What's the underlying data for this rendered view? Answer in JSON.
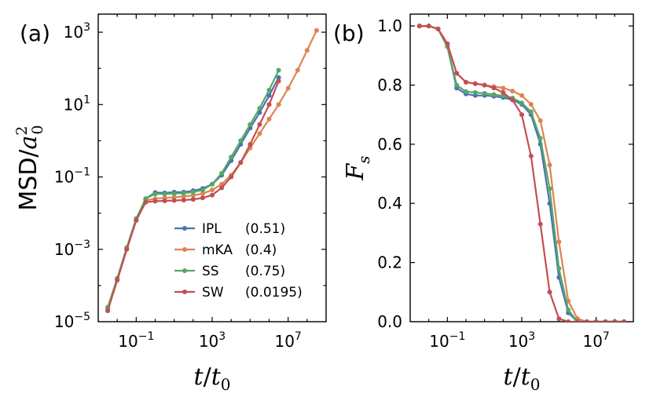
{
  "chart_data": [
    {
      "type": "line",
      "panel_label": "(a)",
      "title": "",
      "xlabel": "t/t0",
      "xlabel_parts": {
        "var": "t",
        "sep": "/",
        "base": "t",
        "sub": "0"
      },
      "ylabel": "MSD/a0^2",
      "ylabel_parts": {
        "main": "MSD/",
        "var": "a",
        "sub": "0",
        "sup": "2"
      },
      "xscale": "log",
      "yscale": "log",
      "xlim_log10": [
        -3,
        9
      ],
      "ylim_log10": [
        -5,
        3.5
      ],
      "xticks": [
        {
          "base": "10",
          "exp": "−1",
          "value_log10": -1
        },
        {
          "base": "10",
          "exp": "3",
          "value_log10": 3
        },
        {
          "base": "10",
          "exp": "7",
          "value_log10": 7
        }
      ],
      "yticks": [
        {
          "base": "10",
          "exp": "−5",
          "value_log10": -5
        },
        {
          "base": "10",
          "exp": "−3",
          "value_log10": -3
        },
        {
          "base": "10",
          "exp": "−1",
          "value_log10": -1
        },
        {
          "base": "10",
          "exp": "1",
          "value_log10": 1
        },
        {
          "base": "10",
          "exp": "3",
          "value_log10": 3
        }
      ],
      "legend_position": "lower-right",
      "series": [
        {
          "name": "IPL",
          "label": "(0.51)",
          "color": "#4c72b0",
          "x_log10": [
            -2.5,
            -2,
            -1.5,
            -1,
            -0.5,
            0,
            0.5,
            1,
            1.5,
            2,
            2.5,
            3,
            3.5,
            4,
            4.5,
            5,
            5.5,
            6,
            6.5
          ],
          "y_log10": [
            -4.65,
            -3.85,
            -3.0,
            -2.2,
            -1.6,
            -1.43,
            -1.44,
            -1.42,
            -1.42,
            -1.38,
            -1.32,
            -1.2,
            -0.95,
            -0.55,
            -0.1,
            0.35,
            0.78,
            1.25,
            1.75
          ]
        },
        {
          "name": "mKA",
          "label": "(0.4)",
          "color": "#dd8452",
          "x_log10": [
            -2.5,
            -2,
            -1.5,
            -1,
            -0.5,
            0,
            0.5,
            1,
            1.5,
            2,
            2.5,
            3,
            3.5,
            4,
            4.5,
            5,
            5.5,
            6,
            6.5,
            7,
            7.5,
            8,
            8.5
          ],
          "y_log10": [
            -4.65,
            -3.85,
            -3.0,
            -2.2,
            -1.65,
            -1.6,
            -1.58,
            -1.56,
            -1.54,
            -1.51,
            -1.46,
            -1.36,
            -1.2,
            -0.95,
            -0.6,
            -0.2,
            0.2,
            0.6,
            1.0,
            1.45,
            1.95,
            2.5,
            3.05
          ]
        },
        {
          "name": "SS",
          "label": "(0.75)",
          "color": "#55a868",
          "x_log10": [
            -2.5,
            -2,
            -1.5,
            -1,
            -0.5,
            0,
            0.5,
            1,
            1.5,
            2,
            2.5,
            3,
            3.5,
            4,
            4.5,
            5,
            5.5,
            6,
            6.5
          ],
          "y_log10": [
            -4.6,
            -3.8,
            -2.95,
            -2.15,
            -1.6,
            -1.47,
            -1.47,
            -1.46,
            -1.45,
            -1.42,
            -1.36,
            -1.2,
            -0.9,
            -0.45,
            0.0,
            0.45,
            0.9,
            1.4,
            1.95
          ]
        },
        {
          "name": "SW",
          "label": "(0.0195)",
          "color": "#c44e52",
          "x_log10": [
            -2.5,
            -2,
            -1.5,
            -1,
            -0.5,
            0,
            0.5,
            1,
            1.5,
            2,
            2.5,
            3,
            3.5,
            4,
            4.5,
            5,
            5.5,
            6,
            6.5
          ],
          "y_log10": [
            -4.7,
            -3.85,
            -3.0,
            -2.2,
            -1.7,
            -1.67,
            -1.66,
            -1.65,
            -1.64,
            -1.62,
            -1.58,
            -1.5,
            -1.3,
            -1.0,
            -0.6,
            -0.1,
            0.45,
            1.0,
            1.65
          ]
        }
      ]
    },
    {
      "type": "line",
      "panel_label": "(b)",
      "title": "",
      "xlabel": "t/t0",
      "xlabel_parts": {
        "var": "t",
        "sep": "/",
        "base": "t",
        "sub": "0"
      },
      "ylabel": "Fs",
      "ylabel_parts": {
        "var": "F",
        "sub": "s"
      },
      "xscale": "log",
      "yscale": "linear",
      "xlim_log10": [
        -3,
        9
      ],
      "ylim": [
        0.0,
        1.04
      ],
      "xticks": [
        {
          "base": "10",
          "exp": "−1",
          "value_log10": -1
        },
        {
          "base": "10",
          "exp": "3",
          "value_log10": 3
        },
        {
          "base": "10",
          "exp": "7",
          "value_log10": 7
        }
      ],
      "yticks": [
        {
          "label": "0.0",
          "value": 0.0
        },
        {
          "label": "0.2",
          "value": 0.2
        },
        {
          "label": "0.4",
          "value": 0.4
        },
        {
          "label": "0.6",
          "value": 0.6
        },
        {
          "label": "0.8",
          "value": 0.8
        },
        {
          "label": "1.0",
          "value": 1.0
        }
      ],
      "series": [
        {
          "name": "IPL",
          "color": "#4c72b0",
          "x_log10": [
            -2.5,
            -2,
            -1.5,
            -1,
            -0.5,
            0,
            0.5,
            1,
            1.5,
            2,
            2.5,
            3,
            3.5,
            4,
            4.5,
            5,
            5.5,
            6,
            6.5,
            7,
            7.5,
            8,
            8.5
          ],
          "y": [
            1.0,
            1.0,
            0.99,
            0.93,
            0.79,
            0.77,
            0.765,
            0.765,
            0.762,
            0.758,
            0.75,
            0.735,
            0.7,
            0.6,
            0.4,
            0.15,
            0.03,
            0.0,
            0.0,
            0.0,
            0.0,
            0.0,
            0.0
          ]
        },
        {
          "name": "mKA",
          "color": "#dd8452",
          "x_log10": [
            -2.5,
            -2,
            -1.5,
            -1,
            -0.5,
            0,
            0.5,
            1,
            1.5,
            2,
            2.5,
            3,
            3.5,
            4,
            4.5,
            5,
            5.5,
            6,
            6.5,
            7,
            7.5,
            8,
            8.5
          ],
          "y": [
            1.0,
            1.0,
            0.99,
            0.94,
            0.84,
            0.81,
            0.805,
            0.8,
            0.795,
            0.79,
            0.78,
            0.765,
            0.735,
            0.68,
            0.53,
            0.27,
            0.07,
            0.01,
            0.0,
            0.0,
            0.0,
            0.0,
            0.0
          ]
        },
        {
          "name": "SS",
          "color": "#55a868",
          "x_log10": [
            -2.5,
            -2,
            -1.5,
            -1,
            -0.5,
            0,
            0.5,
            1,
            1.5,
            2,
            2.5,
            3,
            3.5,
            4,
            4.5,
            5,
            5.5,
            6,
            6.5,
            7,
            7.5,
            8,
            8.5
          ],
          "y": [
            1.0,
            1.0,
            0.99,
            0.93,
            0.8,
            0.778,
            0.775,
            0.772,
            0.768,
            0.764,
            0.756,
            0.74,
            0.71,
            0.62,
            0.45,
            0.18,
            0.04,
            0.0,
            0.0,
            0.0,
            0.0,
            0.0,
            0.0
          ]
        },
        {
          "name": "SW",
          "color": "#c44e52",
          "x_log10": [
            -2.5,
            -2,
            -1.5,
            -1,
            -0.5,
            0,
            0.5,
            1,
            1.5,
            2,
            2.5,
            3,
            3.5,
            4,
            4.5,
            5,
            5.5,
            6,
            6.5,
            7,
            7.5,
            8,
            8.5
          ],
          "y": [
            1.0,
            1.0,
            0.99,
            0.94,
            0.84,
            0.81,
            0.805,
            0.8,
            0.79,
            0.775,
            0.75,
            0.7,
            0.56,
            0.33,
            0.1,
            0.01,
            0.0,
            0.0,
            0.0,
            0.0,
            0.0,
            0.0,
            0.0
          ]
        }
      ]
    }
  ]
}
